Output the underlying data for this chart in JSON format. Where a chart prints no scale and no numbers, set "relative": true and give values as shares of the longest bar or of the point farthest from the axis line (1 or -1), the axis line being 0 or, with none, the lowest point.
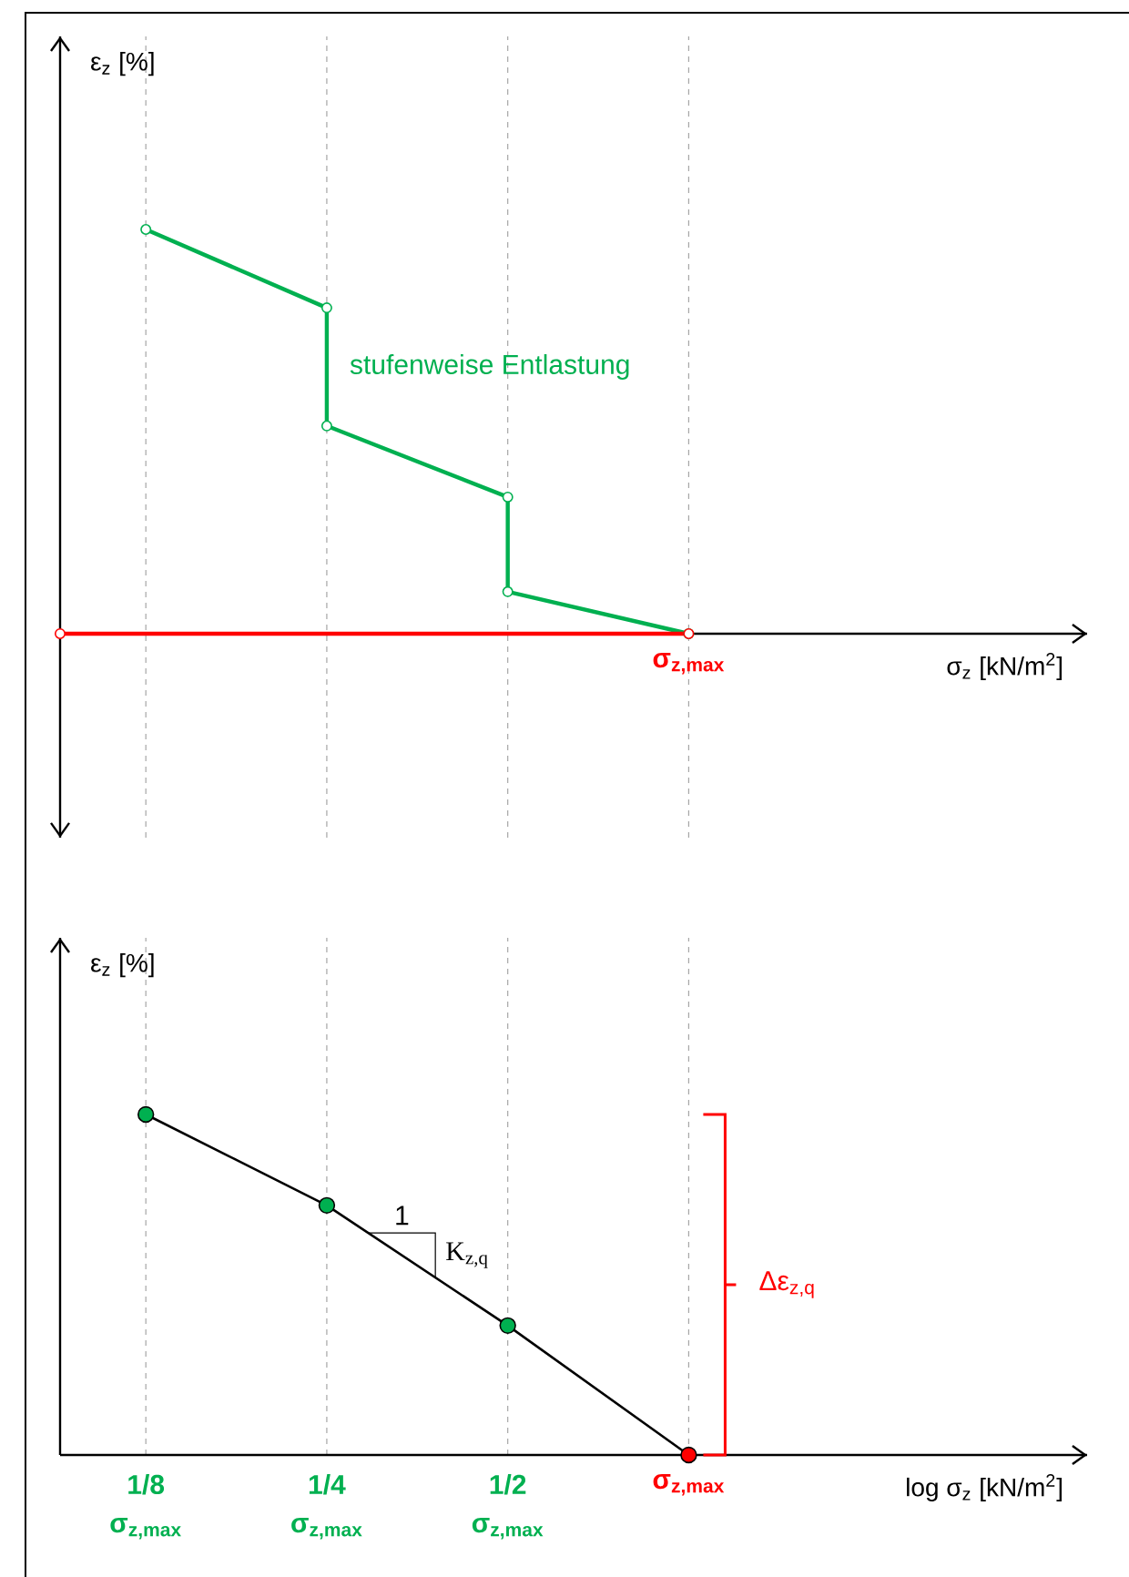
{
  "chart_data": [
    {
      "type": "line",
      "relative": true,
      "log": "x",
      "grid": "x",
      "xlabel": "σ$_{z}$ [kN/m$^{2}$]",
      "ylabel": "ε$_{z}$ [%]",
      "xlim": [
        0.09,
        4.6
      ],
      "xticks": [
        0.125,
        0.25,
        0.5,
        1
      ],
      "tick_labels": false,
      "marker": "circle",
      "series": [
        {
          "name": "stufenweise Entlastung",
          "color": "#00b050",
          "x": [
            0.125,
            0.25,
            0.25,
            0.5,
            0.5,
            1
          ],
          "values": [
            1,
            0.806,
            0.514,
            0.338,
            0.104,
            0
          ]
        },
        {
          "color": "#ff0000",
          "x": [
            0.09,
            1
          ],
          "values": [
            0,
            0
          ]
        }
      ],
      "annotations": [
        {
          "text": "σ$_{z,max}$",
          "x": 1,
          "y": 0
        }
      ]
    },
    {
      "type": "line",
      "relative": true,
      "log": "x",
      "grid": "x",
      "xlabel": "log σ$_{z}$ [kN/m$^{2}$]",
      "ylabel": "ε$_{z}$ [%]",
      "xlim": [
        0.09,
        4.6
      ],
      "xticks": [
        {
          "value": 0.125,
          "label": "1/8"
        },
        {
          "value": 0.25,
          "label": "1/4"
        },
        {
          "value": 0.5,
          "label": "1/2"
        },
        {
          "value": 1,
          "label": "σ$_{z,max}$"
        }
      ],
      "tick_labels": "x",
      "marker": "circle",
      "series": [
        {
          "color": "#000000",
          "x": [
            0.125,
            0.25,
            0.5,
            1
          ],
          "values": [
            1,
            0.733,
            0.38,
            0
          ],
          "colors": [
            "#00b050",
            "#00b050",
            "#00b050",
            "#ff0000"
          ]
        }
      ],
      "annotations": [
        "σ$_{z,max}$",
        "σ$_{z,max}$",
        "σ$_{z,max}$",
        "1",
        "K$_{z,q}$",
        "Δε$_{z,q}$"
      ]
    }
  ]
}
